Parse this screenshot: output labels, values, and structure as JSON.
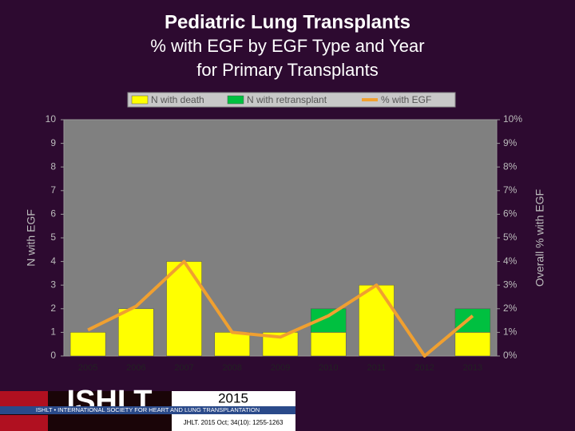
{
  "chart_data": {
    "type": "stacked_bar_line",
    "title": "Pediatric Lung Transplants",
    "subtitle": [
      "% with EGF by EGF Type and Year",
      "for Primary Transplants"
    ],
    "categories": [
      "2005",
      "2006",
      "2007",
      "2008",
      "2009",
      "2010",
      "2011",
      "2012",
      "2013"
    ],
    "series": [
      {
        "name": "N with death",
        "color": "#ffff00",
        "values": [
          1,
          2,
          4,
          1,
          1,
          1,
          3,
          0,
          1
        ]
      },
      {
        "name": "N with retransplant",
        "color": "#00c040",
        "values": [
          0,
          0,
          0,
          0,
          0,
          1,
          0,
          0,
          1
        ]
      },
      {
        "name": "% with EGF",
        "color": "#f0a030",
        "axis": "y2",
        "values": [
          1.1,
          2.1,
          4.0,
          1.0,
          0.8,
          1.7,
          3.0,
          0,
          1.7
        ]
      }
    ],
    "ylabel": "N with EGF",
    "y2label": "Overall % with EGF",
    "ylim": [
      0,
      10
    ],
    "yticks": [
      0,
      1,
      2,
      3,
      4,
      5,
      6,
      7,
      8,
      9,
      10
    ],
    "y2lim": [
      0,
      10
    ],
    "y2ticks": [
      {
        "value": 0,
        "label": "0%"
      },
      {
        "value": 1,
        "label": "1%"
      },
      {
        "value": 2,
        "label": "2%"
      },
      {
        "value": 3,
        "label": "3%"
      },
      {
        "value": 4,
        "label": "4%"
      },
      {
        "value": 5,
        "label": "5%"
      },
      {
        "value": 6,
        "label": "6%"
      },
      {
        "value": 7,
        "label": "7%"
      },
      {
        "value": 8,
        "label": "8%"
      },
      {
        "value": 9,
        "label": "9%"
      },
      {
        "value": 10,
        "label": "10%"
      }
    ],
    "legend": "top"
  },
  "footer": {
    "logo": "ISHLT",
    "society": "ISHLT • INTERNATIONAL SOCIETY FOR HEART AND LUNG TRANSPLANTATION",
    "year": "2015",
    "citation": "JHLT. 2015 Oct; 34(10): 1255-1263"
  }
}
